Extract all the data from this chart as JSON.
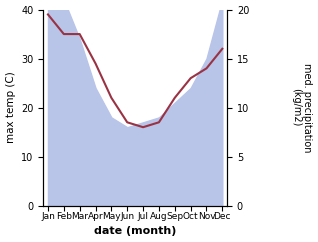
{
  "months": [
    "Jan",
    "Feb",
    "Mar",
    "Apr",
    "May",
    "Jun",
    "Jul",
    "Aug",
    "Sep",
    "Oct",
    "Nov",
    "Dec"
  ],
  "x": [
    0,
    1,
    2,
    3,
    4,
    5,
    6,
    7,
    8,
    9,
    10,
    11
  ],
  "temp": [
    39,
    35,
    35,
    29,
    22,
    17,
    16,
    17,
    22,
    26,
    28,
    32
  ],
  "precip": [
    20.5,
    21,
    17,
    12,
    9,
    8,
    8.5,
    9,
    10.5,
    12,
    15,
    21
  ],
  "temp_color": "#993344",
  "fill_color": "#b8c4e8",
  "ylim_left": [
    0,
    40
  ],
  "ylim_right": [
    0,
    20
  ],
  "xlabel": "date (month)",
  "ylabel_left": "max temp (C)",
  "ylabel_right": "med. precipitation\n(kg/m2)",
  "yticks_left": [
    0,
    10,
    20,
    30,
    40
  ],
  "yticks_right": [
    0,
    5,
    10,
    15,
    20
  ],
  "background": "#ffffff"
}
